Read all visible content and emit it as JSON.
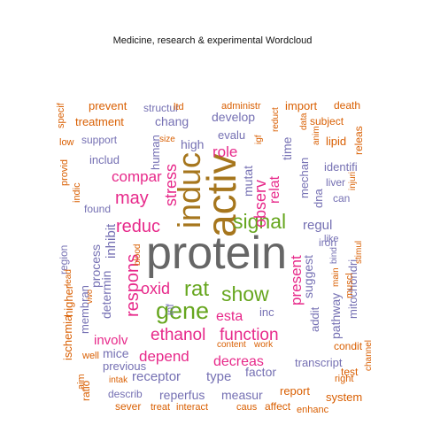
{
  "title": "Medicine, research & experimental  Wordcloud",
  "palette": {
    "orange": "#D95F02",
    "purple": "#7570B3",
    "magenta": "#E7298A",
    "green": "#66A61E",
    "gold": "#A6761D",
    "gray": "#666666"
  },
  "words": [
    {
      "text": "protein",
      "color": "gray"
    },
    {
      "text": "activ",
      "color": "gold"
    },
    {
      "text": "induc",
      "color": "gold"
    },
    {
      "text": "signal",
      "color": "green"
    },
    {
      "text": "gene",
      "color": "green"
    },
    {
      "text": "rat",
      "color": "green"
    },
    {
      "text": "show",
      "color": "green"
    },
    {
      "text": "reduc",
      "color": "magenta"
    },
    {
      "text": "oxid",
      "color": "magenta"
    },
    {
      "text": "may",
      "color": "magenta"
    },
    {
      "text": "respons",
      "color": "magenta"
    },
    {
      "text": "ethanol",
      "color": "magenta"
    },
    {
      "text": "function",
      "color": "magenta"
    },
    {
      "text": "role",
      "color": "magenta"
    },
    {
      "text": "stress",
      "color": "magenta"
    },
    {
      "text": "observ",
      "color": "magenta"
    },
    {
      "text": "present",
      "color": "magenta"
    },
    {
      "text": "compar",
      "color": "magenta"
    },
    {
      "text": "esta",
      "color": "magenta"
    },
    {
      "text": "depend",
      "color": "magenta"
    },
    {
      "text": "decreas",
      "color": "magenta"
    },
    {
      "text": "involv",
      "color": "magenta"
    },
    {
      "text": "relat",
      "color": "magenta"
    },
    {
      "text": "suggest",
      "color": "purple"
    },
    {
      "text": "regul",
      "color": "purple"
    },
    {
      "text": "receptor",
      "color": "purple"
    },
    {
      "text": "type",
      "color": "purple"
    },
    {
      "text": "factor",
      "color": "purple"
    },
    {
      "text": "mice",
      "color": "purple"
    },
    {
      "text": "inhibit",
      "color": "purple"
    },
    {
      "text": "determin",
      "color": "purple"
    },
    {
      "text": "process",
      "color": "purple"
    },
    {
      "text": "membran",
      "color": "purple"
    },
    {
      "text": "develop",
      "color": "purple"
    },
    {
      "text": "chang",
      "color": "purple"
    },
    {
      "text": "high",
      "color": "purple"
    },
    {
      "text": "human",
      "color": "purple"
    },
    {
      "text": "evalu",
      "color": "purple"
    },
    {
      "text": "mutat",
      "color": "purple"
    },
    {
      "text": "time",
      "color": "purple"
    },
    {
      "text": "mechan",
      "color": "purple"
    },
    {
      "text": "dna",
      "color": "purple"
    },
    {
      "text": "pathway",
      "color": "purple"
    },
    {
      "text": "mitochondri",
      "color": "purple"
    },
    {
      "text": "addit",
      "color": "purple"
    },
    {
      "text": "reperfus",
      "color": "purple"
    },
    {
      "text": "measur",
      "color": "purple"
    },
    {
      "text": "inf",
      "color": "purple"
    },
    {
      "text": "inc",
      "color": "purple"
    },
    {
      "text": "transcript",
      "color": "purple"
    },
    {
      "text": "previous",
      "color": "purple"
    },
    {
      "text": "identifi",
      "color": "purple"
    },
    {
      "text": "liver",
      "color": "purple"
    },
    {
      "text": "can",
      "color": "purple"
    },
    {
      "text": "iron",
      "color": "purple"
    },
    {
      "text": "like",
      "color": "purple"
    },
    {
      "text": "found",
      "color": "purple"
    },
    {
      "text": "includ",
      "color": "purple"
    },
    {
      "text": "support",
      "color": "purple"
    },
    {
      "text": "structur",
      "color": "purple"
    },
    {
      "text": "region",
      "color": "purple"
    },
    {
      "text": "bind",
      "color": "purple"
    },
    {
      "text": "describ",
      "color": "purple"
    },
    {
      "text": "prevent",
      "color": "orange"
    },
    {
      "text": "treatment",
      "color": "orange"
    },
    {
      "text": "ltd",
      "color": "orange"
    },
    {
      "text": "administr",
      "color": "orange"
    },
    {
      "text": "import",
      "color": "orange"
    },
    {
      "text": "death",
      "color": "orange"
    },
    {
      "text": "subject",
      "color": "orange"
    },
    {
      "text": "lipid",
      "color": "orange"
    },
    {
      "text": "releas",
      "color": "orange"
    },
    {
      "text": "injuri",
      "color": "orange"
    },
    {
      "text": "stimul",
      "color": "orange"
    },
    {
      "text": "specif",
      "color": "orange"
    },
    {
      "text": "low",
      "color": "orange"
    },
    {
      "text": "provid",
      "color": "orange"
    },
    {
      "text": "indic",
      "color": "orange"
    },
    {
      "text": "size",
      "color": "orange"
    },
    {
      "text": "igf",
      "color": "orange"
    },
    {
      "text": "reduct",
      "color": "orange"
    },
    {
      "text": "data",
      "color": "orange"
    },
    {
      "text": "anim",
      "color": "orange"
    },
    {
      "text": "blood",
      "color": "orange"
    },
    {
      "text": "lead",
      "color": "orange"
    },
    {
      "text": "vivo",
      "color": "orange"
    },
    {
      "text": "main",
      "color": "orange"
    },
    {
      "text": "muscl",
      "color": "orange"
    },
    {
      "text": "ischemia",
      "color": "orange"
    },
    {
      "text": "higher",
      "color": "orange"
    },
    {
      "text": "well",
      "color": "orange"
    },
    {
      "text": "intak",
      "color": "orange"
    },
    {
      "text": "aim",
      "color": "orange"
    },
    {
      "text": "ratio",
      "color": "orange"
    },
    {
      "text": "content",
      "color": "orange"
    },
    {
      "text": "work",
      "color": "orange"
    },
    {
      "text": "condit",
      "color": "orange"
    },
    {
      "text": "test",
      "color": "orange"
    },
    {
      "text": "right",
      "color": "orange"
    },
    {
      "text": "channel",
      "color": "orange"
    },
    {
      "text": "report",
      "color": "orange"
    },
    {
      "text": "system",
      "color": "orange"
    },
    {
      "text": "sever",
      "color": "orange"
    },
    {
      "text": "treat",
      "color": "orange"
    },
    {
      "text": "interact",
      "color": "orange"
    },
    {
      "text": "caus",
      "color": "orange"
    },
    {
      "text": "affect",
      "color": "orange"
    },
    {
      "text": "enhanc",
      "color": "orange"
    }
  ]
}
